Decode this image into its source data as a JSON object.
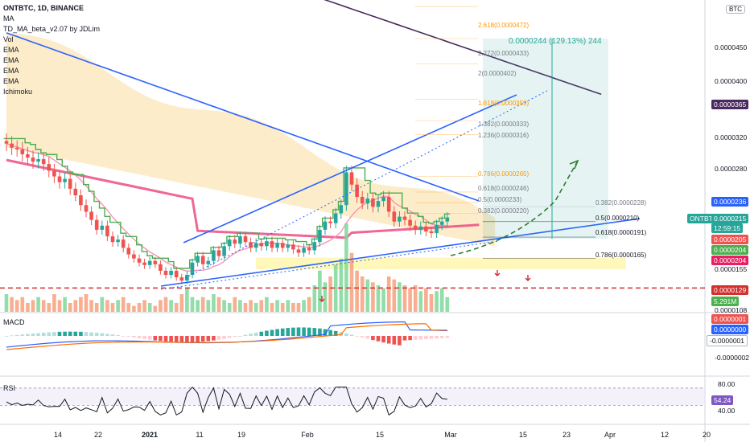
{
  "legend": {
    "symbol": "ONTBTC, 1D, BINANCE",
    "indicators": [
      "MA",
      "TD_MA_beta_v2.07 by JDLim",
      "Vol",
      "EMA",
      "EMA",
      "EMA",
      "EMA",
      "Ichimoku"
    ]
  },
  "currency_button": "BTC",
  "panes": {
    "macd": "MACD",
    "rsi": "RSI"
  },
  "price_axis": [
    "0.0000450",
    "0.0000400",
    "0.0000320",
    "0.0000280",
    "0.0000155",
    "0.0000108"
  ],
  "price_tags": [
    {
      "text": "0.0000365",
      "bg": "#4a2a5e",
      "fg": "#ffffff"
    },
    {
      "text": "0.0000236",
      "bg": "#2962ff",
      "fg": "#ffffff"
    },
    {
      "text": "ONTBTC",
      "bg": "#26a69a",
      "fg": "#ffffff"
    },
    {
      "text": "0.0000215",
      "bg": "#26a69a",
      "fg": "#ffffff"
    },
    {
      "text": "12:59:15",
      "bg": "#26a69a",
      "fg": "#ffffff"
    },
    {
      "text": "0.0000205",
      "bg": "#ef5350",
      "fg": "#ffffff"
    },
    {
      "text": "0.0000204",
      "bg": "#4caf50",
      "fg": "#ffffff"
    },
    {
      "text": "0.0000204",
      "bg": "#e91e63",
      "fg": "#ffffff"
    },
    {
      "text": "0.0000129",
      "bg": "#d32f2f",
      "fg": "#ffffff"
    },
    {
      "text": "5.291M",
      "bg": "#4caf50",
      "fg": "#ffffff"
    }
  ],
  "macd_axis": [
    "0.0000001",
    "0.0000000",
    "-0.0000001",
    "-0.0000002"
  ],
  "macd_tags": [
    {
      "text": "0.0000001",
      "bg": "#ef5350",
      "fg": "#ffffff"
    },
    {
      "text": "0.0000000",
      "bg": "#2962ff",
      "fg": "#ffffff"
    },
    {
      "text": "-0.0000001",
      "bg": "#ffffff",
      "fg": "#131722"
    }
  ],
  "rsi_axis": [
    "80.00",
    "40.00"
  ],
  "rsi_tag": {
    "text": "54.24",
    "bg": "#7e57c2",
    "fg": "#ffffff"
  },
  "time_axis": [
    "14",
    "22",
    "2021",
    "11",
    "19",
    "Feb",
    "15",
    "Mar",
    "15",
    "23",
    "Apr",
    "12",
    "20"
  ],
  "fib_upper": [
    "2.618(0.0000472)",
    "2.272(0.0000433)",
    "2(0.0000402)",
    "1.618(0.0000359)",
    "1.382(0.0000333)",
    "1.236(0.0000316)",
    "0.786(0.0000265)",
    "0.618(0.0000246)",
    "0.5(0.0000233)",
    "0.382(0.0000220)"
  ],
  "fib_lower": [
    "0.382(0.0000228)",
    "0.5(0.0000210)",
    "0.618(0.0000191)",
    "0.786(0.0000165)"
  ],
  "measure_label": "0.0000244 (129.13%) 244",
  "chart_data": {
    "type": "candlestick",
    "symbol": "ONTBTC",
    "interval": "1D",
    "exchange": "BINANCE",
    "last_price": 2.15e-05,
    "rsi_last": 54.24,
    "colors": {
      "up": "#26a69a",
      "down": "#ef5350",
      "ma_long": "#4a2a5e",
      "ema_blue": "#2962ff",
      "ema_pink": "#ec407a",
      "td_green": "#4caf50",
      "support": "#d32f2f"
    },
    "close": [
      3.05e-05,
      3e-05,
      2.98e-05,
      2.92e-05,
      2.88e-05,
      2.83e-05,
      2.86e-05,
      2.8e-05,
      2.72e-05,
      2.65e-05,
      2.58e-05,
      2.62e-05,
      2.5e-05,
      2.42e-05,
      2.3e-05,
      2.22e-05,
      2.12e-05,
      2e-05,
      2.05e-05,
      1.92e-05,
      1.85e-05,
      1.88e-05,
      1.78e-05,
      1.7e-05,
      1.65e-05,
      1.6e-05,
      1.57e-05,
      1.62e-05,
      1.58e-05,
      1.5e-05,
      1.45e-05,
      1.5e-05,
      1.42e-05,
      1.38e-05,
      1.45e-05,
      1.6e-05,
      1.68e-05,
      1.58e-05,
      1.62e-05,
      1.75e-05,
      1.68e-05,
      1.8e-05,
      1.88e-05,
      1.83e-05,
      1.92e-05,
      1.85e-05,
      1.78e-05,
      1.84e-05,
      1.8e-05,
      1.86e-05,
      1.78e-05,
      1.84e-05,
      1.78e-05,
      1.82e-05,
      1.76e-05,
      1.72e-05,
      1.78e-05,
      1.75e-05,
      1.85e-05,
      2e-05,
      2.1e-05,
      2.08e-05,
      2.2e-05,
      2.3e-05,
      2.7e-05,
      2.55e-05,
      2.4e-05,
      2.32e-05,
      2.38e-05,
      2.28e-05,
      2.35e-05,
      2.4e-05,
      2.22e-05,
      2.1e-05,
      2.16e-05,
      2.12e-05,
      2.05e-05,
      2e-05,
      2.04e-05,
      1.98e-05,
      1.96e-05,
      2.06e-05,
      2.1e-05,
      2.15e-05
    ],
    "volume": [
      6,
      5,
      4,
      5,
      3,
      4,
      5,
      4,
      3,
      6,
      4,
      5,
      3,
      4,
      5,
      6,
      4,
      3,
      5,
      4,
      3,
      4,
      5,
      3,
      2,
      3,
      4,
      3,
      2,
      4,
      5,
      4,
      3,
      6,
      8,
      5,
      4,
      5,
      4,
      6,
      5,
      4,
      3,
      5,
      4,
      3,
      4,
      3,
      4,
      5,
      3,
      4,
      3,
      4,
      3,
      3,
      4,
      5,
      9,
      14,
      10,
      12,
      16,
      18,
      30,
      20,
      14,
      12,
      11,
      10,
      9,
      8,
      12,
      11,
      10,
      9,
      8,
      9,
      7,
      8,
      6,
      7,
      8,
      5
    ],
    "support_level": 1.29e-05,
    "measured_move": {
      "from": 1.89e-05,
      "to": 4.33e-05,
      "change": 2.44e-05,
      "percent": 129.13,
      "bars": 244
    },
    "rsi_bounds": [
      40,
      80
    ]
  }
}
